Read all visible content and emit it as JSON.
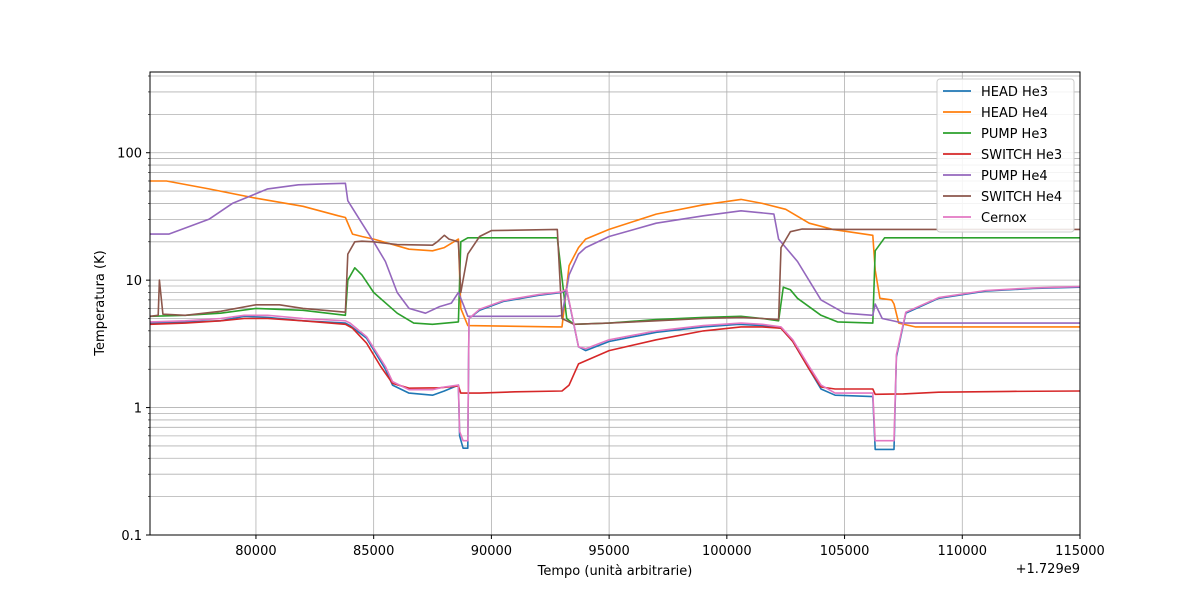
{
  "chart_data": {
    "type": "line",
    "xlabel": "Tempo (unità arbitrarie)",
    "ylabel": "Temperatura (K)",
    "x_offset_label": "+1.729e9",
    "x_scale": "linear",
    "y_scale": "log",
    "xlim": [
      75500,
      115000
    ],
    "ylim": [
      0.1,
      430
    ],
    "x_ticks": [
      80000,
      85000,
      90000,
      95000,
      100000,
      105000,
      110000,
      115000
    ],
    "x_tick_labels": [
      "80000",
      "85000",
      "90000",
      "95000",
      "100000",
      "105000",
      "110000",
      "115000"
    ],
    "y_ticks": [
      0.1,
      1,
      10,
      100
    ],
    "y_tick_labels": [
      "0.1",
      "1",
      "10",
      "100"
    ],
    "grid": true,
    "legend_position": "top-right",
    "series": [
      {
        "name": "HEAD He3",
        "color": "#1f77b4",
        "points": [
          [
            75500,
            4.6
          ],
          [
            77000,
            4.7
          ],
          [
            78500,
            4.8
          ],
          [
            79500,
            5.2
          ],
          [
            80500,
            5.1
          ],
          [
            82000,
            4.8
          ],
          [
            83800,
            4.6
          ],
          [
            84000,
            4.4
          ],
          [
            84700,
            3.5
          ],
          [
            85500,
            2.0
          ],
          [
            85800,
            1.5
          ],
          [
            86500,
            1.3
          ],
          [
            87500,
            1.25
          ],
          [
            88000,
            1.35
          ],
          [
            88600,
            1.5
          ],
          [
            88650,
            0.6
          ],
          [
            88800,
            0.48
          ],
          [
            89000,
            0.48
          ],
          [
            89050,
            5.0
          ],
          [
            89500,
            5.8
          ],
          [
            90500,
            6.8
          ],
          [
            92000,
            7.6
          ],
          [
            93000,
            8.0
          ],
          [
            93200,
            8.3
          ],
          [
            93700,
            3.0
          ],
          [
            94000,
            2.8
          ],
          [
            95000,
            3.3
          ],
          [
            97000,
            3.9
          ],
          [
            99000,
            4.3
          ],
          [
            100500,
            4.5
          ],
          [
            101500,
            4.4
          ],
          [
            102300,
            4.2
          ],
          [
            102800,
            3.3
          ],
          [
            103500,
            2.0
          ],
          [
            104000,
            1.4
          ],
          [
            104600,
            1.25
          ],
          [
            106200,
            1.22
          ],
          [
            106300,
            0.47
          ],
          [
            107100,
            0.47
          ],
          [
            107200,
            2.5
          ],
          [
            107600,
            5.5
          ],
          [
            109000,
            7.2
          ],
          [
            111000,
            8.2
          ],
          [
            113000,
            8.6
          ],
          [
            115000,
            8.8
          ]
        ]
      },
      {
        "name": "HEAD He4",
        "color": "#ff7f0e",
        "points": [
          [
            75500,
            60
          ],
          [
            76200,
            60
          ],
          [
            78000,
            52
          ],
          [
            80000,
            44
          ],
          [
            82000,
            38
          ],
          [
            83500,
            32
          ],
          [
            83800,
            31
          ],
          [
            84100,
            23
          ],
          [
            84500,
            22
          ],
          [
            85000,
            21
          ],
          [
            86500,
            17.5
          ],
          [
            87500,
            17
          ],
          [
            88000,
            18
          ],
          [
            88600,
            21
          ],
          [
            88700,
            6
          ],
          [
            89000,
            4.4
          ],
          [
            92800,
            4.3
          ],
          [
            93000,
            4.3
          ],
          [
            93300,
            13
          ],
          [
            93700,
            18
          ],
          [
            94000,
            21
          ],
          [
            95000,
            25
          ],
          [
            97000,
            33
          ],
          [
            99000,
            39
          ],
          [
            100600,
            43
          ],
          [
            101500,
            40
          ],
          [
            102500,
            36
          ],
          [
            103500,
            28
          ],
          [
            104500,
            25
          ],
          [
            106200,
            22.5
          ],
          [
            106300,
            12
          ],
          [
            106500,
            7.2
          ],
          [
            107000,
            7.0
          ],
          [
            107100,
            6.5
          ],
          [
            107300,
            4.6
          ],
          [
            108000,
            4.3
          ],
          [
            115000,
            4.3
          ]
        ]
      },
      {
        "name": "PUMP He3",
        "color": "#2ca02c",
        "points": [
          [
            75500,
            5.2
          ],
          [
            77000,
            5.3
          ],
          [
            78500,
            5.5
          ],
          [
            80000,
            6.0
          ],
          [
            82000,
            5.8
          ],
          [
            83800,
            5.3
          ],
          [
            83900,
            10
          ],
          [
            84200,
            12.5
          ],
          [
            84500,
            11
          ],
          [
            85000,
            8
          ],
          [
            86000,
            5.5
          ],
          [
            86700,
            4.6
          ],
          [
            87500,
            4.5
          ],
          [
            88600,
            4.7
          ],
          [
            88700,
            20
          ],
          [
            89000,
            21.5
          ],
          [
            92800,
            21.5
          ],
          [
            93200,
            5.0
          ],
          [
            93500,
            4.5
          ],
          [
            95000,
            4.6
          ],
          [
            97000,
            4.9
          ],
          [
            99000,
            5.1
          ],
          [
            100600,
            5.2
          ],
          [
            101500,
            5.0
          ],
          [
            102200,
            4.8
          ],
          [
            102400,
            8.8
          ],
          [
            102700,
            8.4
          ],
          [
            103000,
            7.2
          ],
          [
            104000,
            5.3
          ],
          [
            104700,
            4.7
          ],
          [
            106200,
            4.6
          ],
          [
            106300,
            17
          ],
          [
            106700,
            21.5
          ],
          [
            115000,
            21.5
          ]
        ]
      },
      {
        "name": "SWITCH He3",
        "color": "#d62728",
        "points": [
          [
            75500,
            4.5
          ],
          [
            77000,
            4.6
          ],
          [
            78500,
            4.8
          ],
          [
            79500,
            5.0
          ],
          [
            80500,
            5.0
          ],
          [
            82000,
            4.8
          ],
          [
            83800,
            4.5
          ],
          [
            84100,
            4.2
          ],
          [
            84700,
            3.2
          ],
          [
            85300,
            2.1
          ],
          [
            85800,
            1.55
          ],
          [
            86500,
            1.42
          ],
          [
            87800,
            1.43
          ],
          [
            88600,
            1.48
          ],
          [
            88700,
            1.3
          ],
          [
            89500,
            1.3
          ],
          [
            91000,
            1.33
          ],
          [
            93000,
            1.35
          ],
          [
            93300,
            1.5
          ],
          [
            93700,
            2.2
          ],
          [
            95000,
            2.8
          ],
          [
            97000,
            3.4
          ],
          [
            99000,
            4.0
          ],
          [
            100600,
            4.3
          ],
          [
            101500,
            4.3
          ],
          [
            102300,
            4.2
          ],
          [
            102800,
            3.3
          ],
          [
            103500,
            2.0
          ],
          [
            104000,
            1.45
          ],
          [
            104600,
            1.4
          ],
          [
            106200,
            1.4
          ],
          [
            106300,
            1.27
          ],
          [
            107500,
            1.28
          ],
          [
            109000,
            1.32
          ],
          [
            112000,
            1.34
          ],
          [
            115000,
            1.35
          ]
        ]
      },
      {
        "name": "PUMP He4",
        "color": "#9467bd",
        "points": [
          [
            75500,
            23
          ],
          [
            76300,
            23
          ],
          [
            78000,
            30
          ],
          [
            79000,
            40
          ],
          [
            80500,
            52
          ],
          [
            81800,
            56
          ],
          [
            83000,
            57
          ],
          [
            83800,
            57.5
          ],
          [
            83900,
            42
          ],
          [
            84500,
            28
          ],
          [
            85000,
            20
          ],
          [
            85500,
            14
          ],
          [
            86000,
            8
          ],
          [
            86500,
            6.0
          ],
          [
            87200,
            5.5
          ],
          [
            87800,
            6.2
          ],
          [
            88300,
            6.6
          ],
          [
            88600,
            8.0
          ],
          [
            88800,
            6.5
          ],
          [
            89000,
            5.2
          ],
          [
            91000,
            5.2
          ],
          [
            92800,
            5.2
          ],
          [
            93000,
            5.3
          ],
          [
            93300,
            11
          ],
          [
            93700,
            16
          ],
          [
            94000,
            18
          ],
          [
            95000,
            22
          ],
          [
            97000,
            28
          ],
          [
            99000,
            32
          ],
          [
            100600,
            35
          ],
          [
            101300,
            34
          ],
          [
            102000,
            33
          ],
          [
            102200,
            21
          ],
          [
            103000,
            14
          ],
          [
            104000,
            7
          ],
          [
            105000,
            5.5
          ],
          [
            106200,
            5.3
          ],
          [
            106300,
            6.5
          ],
          [
            106600,
            5.0
          ],
          [
            107500,
            4.6
          ],
          [
            115000,
            4.6
          ]
        ]
      },
      {
        "name": "SWITCH He4",
        "color": "#8c564b",
        "points": [
          [
            75500,
            5.2
          ],
          [
            75850,
            5.3
          ],
          [
            75900,
            10
          ],
          [
            76050,
            5.4
          ],
          [
            77000,
            5.3
          ],
          [
            78500,
            5.7
          ],
          [
            80000,
            6.4
          ],
          [
            81000,
            6.4
          ],
          [
            82000,
            6.0
          ],
          [
            83800,
            5.6
          ],
          [
            83900,
            16
          ],
          [
            84200,
            20
          ],
          [
            84500,
            20.2
          ],
          [
            85000,
            20
          ],
          [
            86000,
            19
          ],
          [
            87500,
            18.8
          ],
          [
            87700,
            20
          ],
          [
            88000,
            22.5
          ],
          [
            88200,
            21
          ],
          [
            88600,
            20
          ],
          [
            88700,
            8
          ],
          [
            89000,
            16
          ],
          [
            89500,
            22
          ],
          [
            90000,
            24.5
          ],
          [
            92800,
            25
          ],
          [
            93000,
            5.0
          ],
          [
            93500,
            4.5
          ],
          [
            95000,
            4.6
          ],
          [
            97000,
            4.8
          ],
          [
            99000,
            5.0
          ],
          [
            100600,
            5.1
          ],
          [
            101500,
            5.0
          ],
          [
            102200,
            4.9
          ],
          [
            102300,
            18
          ],
          [
            102700,
            24
          ],
          [
            103200,
            25.2
          ],
          [
            105000,
            25
          ],
          [
            115000,
            25
          ]
        ]
      },
      {
        "name": "Cernox",
        "color": "#e377c2",
        "points": [
          [
            75500,
            4.7
          ],
          [
            77000,
            4.8
          ],
          [
            78500,
            5.0
          ],
          [
            79500,
            5.3
          ],
          [
            80500,
            5.3
          ],
          [
            82000,
            5.0
          ],
          [
            83800,
            4.8
          ],
          [
            84000,
            4.6
          ],
          [
            84700,
            3.6
          ],
          [
            85500,
            2.1
          ],
          [
            85800,
            1.6
          ],
          [
            86500,
            1.38
          ],
          [
            87500,
            1.38
          ],
          [
            88000,
            1.45
          ],
          [
            88600,
            1.5
          ],
          [
            88650,
            0.65
          ],
          [
            88800,
            0.55
          ],
          [
            89000,
            0.55
          ],
          [
            89050,
            5.0
          ],
          [
            89500,
            5.9
          ],
          [
            90500,
            6.9
          ],
          [
            92000,
            7.7
          ],
          [
            93000,
            8.1
          ],
          [
            93200,
            8.5
          ],
          [
            93700,
            3.0
          ],
          [
            94000,
            2.9
          ],
          [
            95000,
            3.4
          ],
          [
            97000,
            4.0
          ],
          [
            99000,
            4.4
          ],
          [
            100600,
            4.6
          ],
          [
            101500,
            4.5
          ],
          [
            102300,
            4.3
          ],
          [
            102800,
            3.4
          ],
          [
            103500,
            2.1
          ],
          [
            104000,
            1.5
          ],
          [
            104600,
            1.3
          ],
          [
            106200,
            1.3
          ],
          [
            106300,
            0.55
          ],
          [
            107100,
            0.55
          ],
          [
            107200,
            2.6
          ],
          [
            107600,
            5.6
          ],
          [
            109000,
            7.3
          ],
          [
            111000,
            8.3
          ],
          [
            113000,
            8.7
          ],
          [
            115000,
            8.9
          ]
        ]
      }
    ]
  }
}
